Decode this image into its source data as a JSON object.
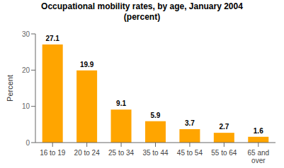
{
  "chart_data": {
    "type": "bar",
    "title": "Occupational mobility rates, by age, January 2004\n(percent)",
    "categories": [
      "16 to 19",
      "20 to 24",
      "25 to 34",
      "35 to 44",
      "45 to 54",
      "55 to 64",
      "65 and\nover"
    ],
    "values": [
      27.1,
      19.9,
      9.1,
      5.9,
      3.7,
      2.7,
      1.6
    ],
    "color": "#FFA500",
    "ylabel": "Percent",
    "ylim": [
      0,
      30
    ],
    "yticks": [
      0,
      10,
      20,
      30
    ],
    "grid": false,
    "data_labels": true
  }
}
